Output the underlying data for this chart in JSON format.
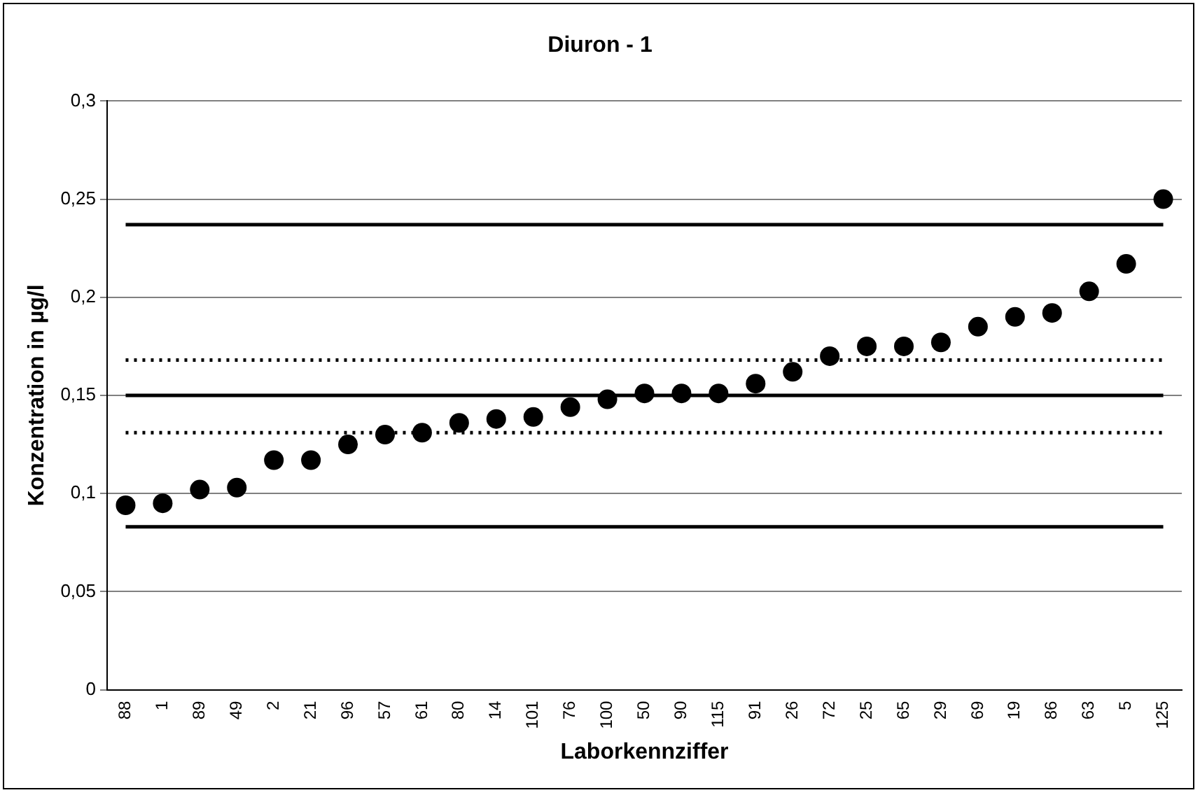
{
  "chart_data": {
    "type": "scatter",
    "title": "Diuron - 1",
    "xlabel": "Laborkennziffer",
    "ylabel": "Konzentration in µg/l",
    "categories": [
      "88",
      "1",
      "89",
      "49",
      "2",
      "21",
      "96",
      "57",
      "61",
      "80",
      "14",
      "101",
      "76",
      "100",
      "50",
      "90",
      "115",
      "91",
      "26",
      "72",
      "25",
      "65",
      "29",
      "69",
      "19",
      "86",
      "63",
      "5",
      "125"
    ],
    "series": [
      {
        "color": "#000000",
        "values": [
          0.094,
          0.095,
          0.102,
          0.103,
          0.117,
          0.117,
          0.125,
          0.13,
          0.131,
          0.136,
          0.138,
          0.139,
          0.144,
          0.148,
          0.151,
          0.151,
          0.151,
          0.156,
          0.162,
          0.17,
          0.175,
          0.175,
          0.177,
          0.185,
          0.19,
          0.192,
          0.203,
          0.217,
          0.25
        ]
      }
    ],
    "ylim": [
      0,
      0.3
    ],
    "yticks": [
      {
        "value": 0,
        "label": "0"
      },
      {
        "value": 0.05,
        "label": "0,05"
      },
      {
        "value": 0.1,
        "label": "0,1"
      },
      {
        "value": 0.15,
        "label": "0,15"
      },
      {
        "value": 0.2,
        "label": "0,2"
      },
      {
        "value": 0.25,
        "label": "0,25"
      },
      {
        "value": 0.3,
        "label": "0,3"
      }
    ],
    "ref_lines": [
      {
        "axis": "y",
        "value": 0.237,
        "color": "#000000",
        "line_style": "solid"
      },
      {
        "axis": "y",
        "value": 0.168,
        "color": "#000000",
        "line_style": "dotted"
      },
      {
        "axis": "y",
        "value": 0.15,
        "color": "#000000",
        "line_style": "solid"
      },
      {
        "axis": "y",
        "value": 0.131,
        "color": "#000000",
        "line_style": "dotted"
      },
      {
        "axis": "y",
        "value": 0.083,
        "color": "#000000",
        "line_style": "solid"
      }
    ],
    "grid": "y",
    "legend": false,
    "marker": "circle"
  }
}
